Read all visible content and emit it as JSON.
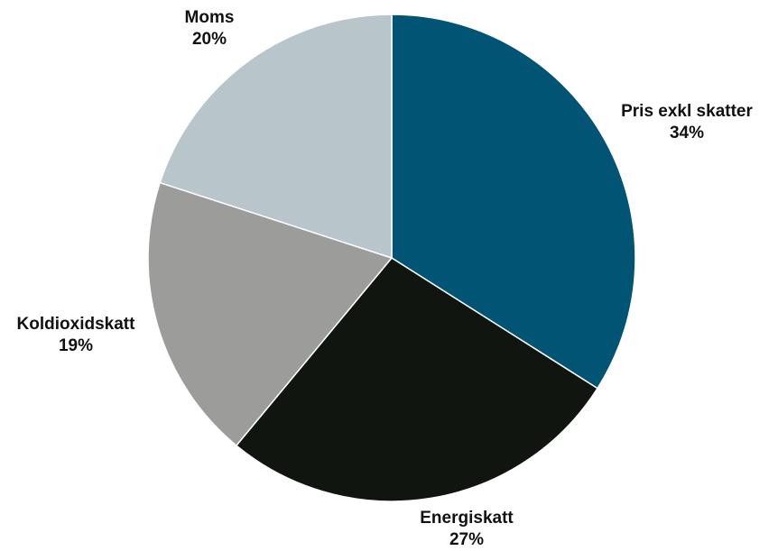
{
  "chart_data": {
    "type": "pie",
    "title": "",
    "slices": [
      {
        "label": "Pris exkl skatter",
        "value": 34,
        "value_label": "34%",
        "color": "#025475"
      },
      {
        "label": "Energiskatt",
        "value": 27,
        "value_label": "27%",
        "color": "#101510"
      },
      {
        "label": "Koldioxidskatt",
        "value": 19,
        "value_label": "19%",
        "color": "#9c9d9a"
      },
      {
        "label": "Moms",
        "value": 20,
        "value_label": "20%",
        "color": "#b8c5ca"
      }
    ],
    "start_angle": "12 o'clock",
    "direction": "clockwise",
    "legend": "none"
  }
}
